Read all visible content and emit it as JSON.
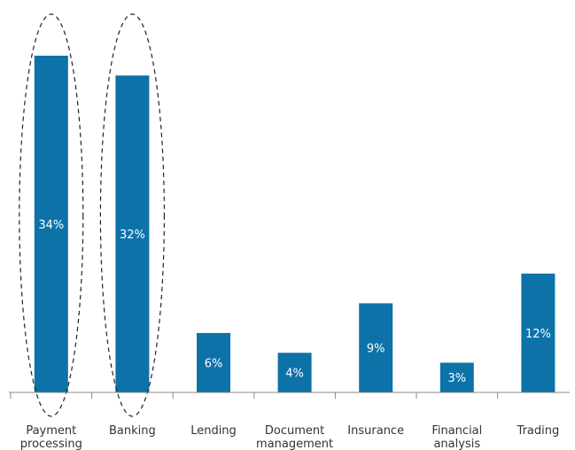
{
  "chart_data": {
    "type": "bar",
    "categories": [
      [
        "Payment",
        "processing"
      ],
      [
        "Banking"
      ],
      [
        "Lending"
      ],
      [
        "Document",
        "management"
      ],
      [
        "Insurance"
      ],
      [
        "Financial",
        "analysis"
      ],
      [
        "Trading"
      ]
    ],
    "values": [
      34,
      32,
      6,
      4,
      9,
      3,
      12
    ],
    "data_labels": [
      "34%",
      "32%",
      "6%",
      "4%",
      "9%",
      "3%",
      "12%"
    ],
    "highlighted": [
      0,
      1
    ],
    "title": "",
    "xlabel": "",
    "ylabel": "",
    "ylim": [
      0,
      38
    ],
    "grid": false,
    "colors": {
      "bar": "#0d72a8",
      "axis": "#888888",
      "highlight_outline": "#222222",
      "label_text": "#ffffff",
      "category_text": "#333333"
    }
  }
}
